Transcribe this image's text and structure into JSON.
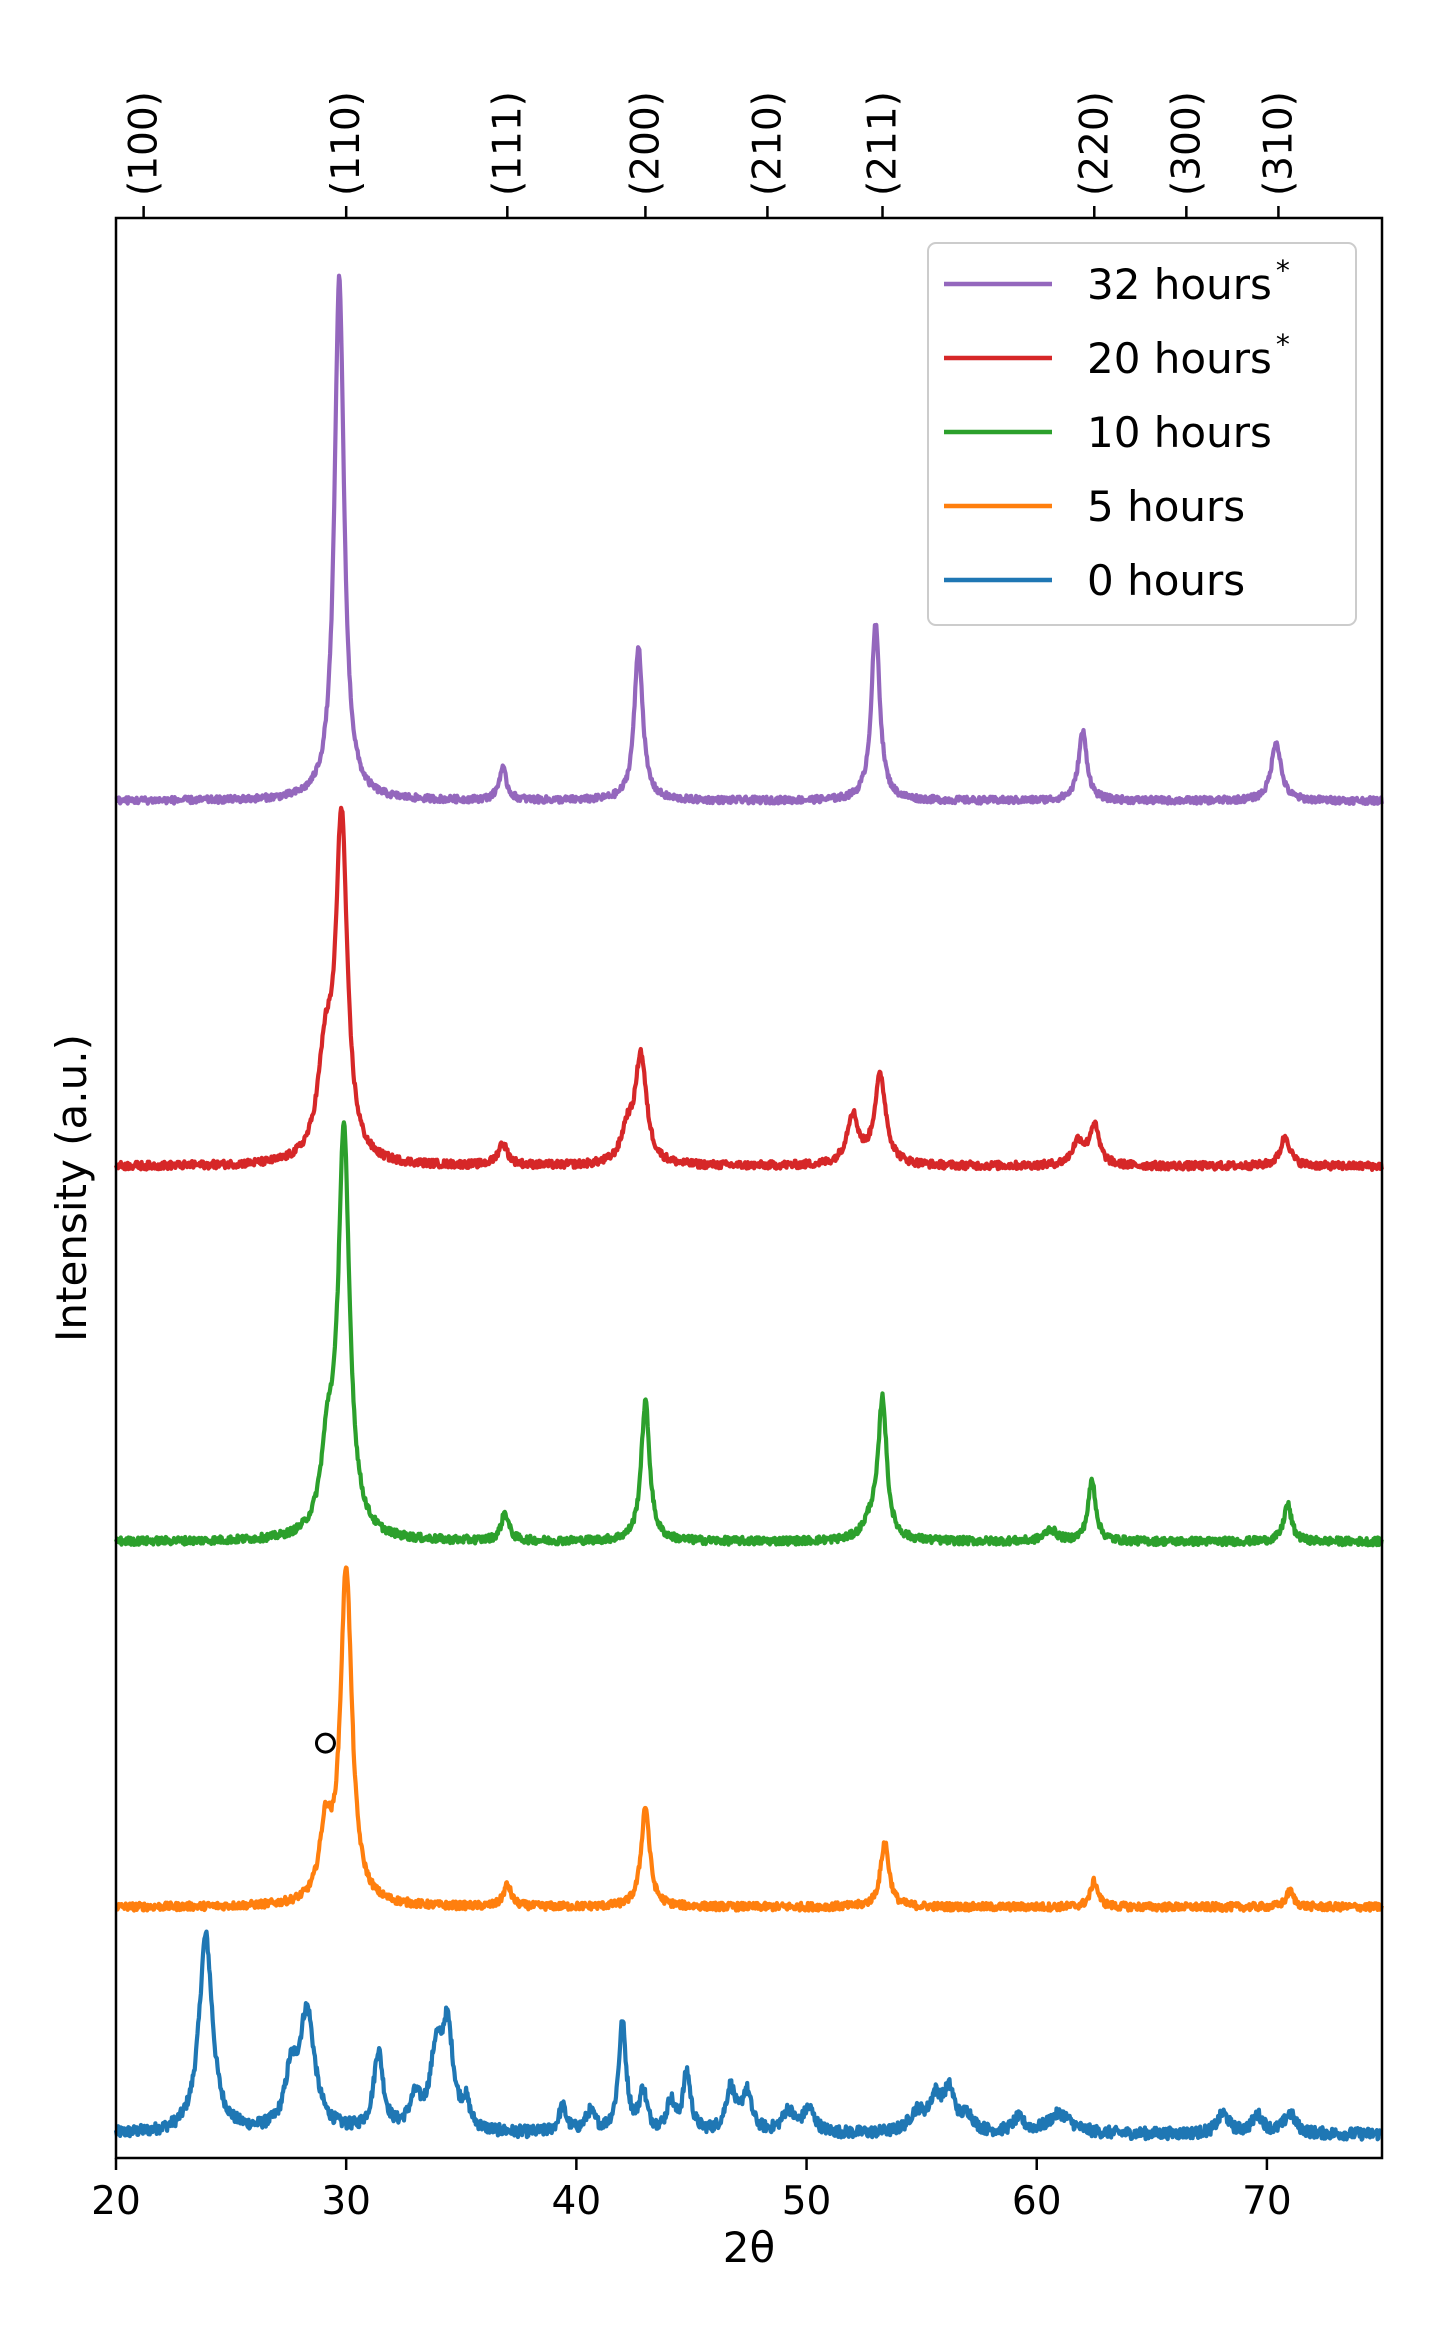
{
  "chart_data": {
    "type": "line",
    "title": "",
    "xlabel": "2θ",
    "ylabel": "Intensity (a.u.)",
    "xlim": [
      20,
      75
    ],
    "xticks": [
      20,
      30,
      40,
      50,
      60,
      70
    ],
    "y_tick_labels_shown": false,
    "top_axis_labels": [
      {
        "label": "(100)",
        "x": 21.2
      },
      {
        "label": "(110)",
        "x": 30.0
      },
      {
        "label": "(111)",
        "x": 37.0
      },
      {
        "label": "(200)",
        "x": 43.0
      },
      {
        "label": "(210)",
        "x": 48.3
      },
      {
        "label": "(211)",
        "x": 53.3
      },
      {
        "label": "(220)",
        "x": 62.5
      },
      {
        "label": "(300)",
        "x": 66.5
      },
      {
        "label": "(310)",
        "x": 70.5
      }
    ],
    "annotations": [
      {
        "text": "o",
        "x": 29.1,
        "series": "5 hours"
      }
    ],
    "legend_position": "top-right",
    "series": [
      {
        "name": "0 hours",
        "superscript": "",
        "color": "#1f77b4",
        "baseline": 0.0,
        "noise": 0.6,
        "peaks": [
          {
            "x": 23.9,
            "height": 10.0,
            "width": 0.35
          },
          {
            "x": 28.3,
            "height": 6.0,
            "width": 0.4
          },
          {
            "x": 27.6,
            "height": 2.5,
            "width": 0.3
          },
          {
            "x": 31.4,
            "height": 4.0,
            "width": 0.25
          },
          {
            "x": 33.0,
            "height": 1.5,
            "width": 0.3
          },
          {
            "x": 33.9,
            "height": 3.5,
            "width": 0.3
          },
          {
            "x": 34.4,
            "height": 5.0,
            "width": 0.3
          },
          {
            "x": 35.2,
            "height": 1.2,
            "width": 0.2
          },
          {
            "x": 39.4,
            "height": 1.3,
            "width": 0.2
          },
          {
            "x": 40.6,
            "height": 1.0,
            "width": 0.25
          },
          {
            "x": 42.0,
            "height": 5.5,
            "width": 0.2
          },
          {
            "x": 42.9,
            "height": 2.0,
            "width": 0.2
          },
          {
            "x": 44.1,
            "height": 1.5,
            "width": 0.2
          },
          {
            "x": 44.8,
            "height": 3.0,
            "width": 0.2
          },
          {
            "x": 46.7,
            "height": 2.2,
            "width": 0.25
          },
          {
            "x": 47.4,
            "height": 2.0,
            "width": 0.25
          },
          {
            "x": 49.2,
            "height": 1.1,
            "width": 0.3
          },
          {
            "x": 50.1,
            "height": 1.2,
            "width": 0.3
          },
          {
            "x": 54.8,
            "height": 1.0,
            "width": 0.4
          },
          {
            "x": 55.6,
            "height": 1.6,
            "width": 0.3
          },
          {
            "x": 56.2,
            "height": 2.0,
            "width": 0.3
          },
          {
            "x": 57.0,
            "height": 0.8,
            "width": 0.3
          },
          {
            "x": 59.2,
            "height": 0.7,
            "width": 0.3
          },
          {
            "x": 61.0,
            "height": 1.0,
            "width": 0.6
          },
          {
            "x": 68.1,
            "height": 1.0,
            "width": 0.3
          },
          {
            "x": 69.6,
            "height": 0.9,
            "width": 0.3
          },
          {
            "x": 71.0,
            "height": 1.0,
            "width": 0.3
          }
        ]
      },
      {
        "name": "5 hours",
        "superscript": "",
        "color": "#ff7f0e",
        "baseline": 11.5,
        "noise": 0.4,
        "peaks": [
          {
            "x": 30.0,
            "height": 17.0,
            "width": 0.3
          },
          {
            "x": 29.1,
            "height": 3.5,
            "width": 0.3
          },
          {
            "x": 37.0,
            "height": 1.1,
            "width": 0.2
          },
          {
            "x": 43.0,
            "height": 5.1,
            "width": 0.22
          },
          {
            "x": 53.4,
            "height": 3.3,
            "width": 0.22
          },
          {
            "x": 62.5,
            "height": 1.3,
            "width": 0.2
          },
          {
            "x": 71.0,
            "height": 0.8,
            "width": 0.2
          }
        ]
      },
      {
        "name": "10 hours",
        "superscript": "",
        "color": "#2ca02c",
        "baseline": 30.0,
        "noise": 0.4,
        "peaks": [
          {
            "x": 29.9,
            "height": 20.3,
            "width": 0.3
          },
          {
            "x": 29.2,
            "height": 4.0,
            "width": 0.35
          },
          {
            "x": 36.9,
            "height": 1.4,
            "width": 0.2
          },
          {
            "x": 43.0,
            "height": 7.1,
            "width": 0.22
          },
          {
            "x": 53.3,
            "height": 7.0,
            "width": 0.22
          },
          {
            "x": 52.8,
            "height": 0.9,
            "width": 0.4
          },
          {
            "x": 60.6,
            "height": 0.6,
            "width": 0.3
          },
          {
            "x": 62.4,
            "height": 3.1,
            "width": 0.2
          },
          {
            "x": 70.9,
            "height": 1.9,
            "width": 0.2
          }
        ]
      },
      {
        "name": "20 hours",
        "superscript": "*",
        "color": "#d62728",
        "baseline": 49.0,
        "noise": 0.4,
        "peaks": [
          {
            "x": 29.8,
            "height": 17.0,
            "width": 0.3
          },
          {
            "x": 29.1,
            "height": 5.0,
            "width": 0.4
          },
          {
            "x": 36.8,
            "height": 1.1,
            "width": 0.25
          },
          {
            "x": 42.8,
            "height": 5.5,
            "width": 0.3
          },
          {
            "x": 42.2,
            "height": 1.5,
            "width": 0.3
          },
          {
            "x": 52.0,
            "height": 2.5,
            "width": 0.3
          },
          {
            "x": 53.2,
            "height": 4.5,
            "width": 0.3
          },
          {
            "x": 61.8,
            "height": 1.2,
            "width": 0.3
          },
          {
            "x": 62.5,
            "height": 2.0,
            "width": 0.25
          },
          {
            "x": 70.8,
            "height": 1.5,
            "width": 0.25
          }
        ]
      },
      {
        "name": "32 hours",
        "superscript": "*",
        "color": "#9467bd",
        "baseline": 67.5,
        "noise": 0.35,
        "peaks": [
          {
            "x": 29.7,
            "height": 26.5,
            "width": 0.25
          },
          {
            "x": 36.8,
            "height": 1.6,
            "width": 0.2
          },
          {
            "x": 42.7,
            "height": 7.8,
            "width": 0.22
          },
          {
            "x": 53.0,
            "height": 8.9,
            "width": 0.22
          },
          {
            "x": 62.0,
            "height": 3.5,
            "width": 0.22
          },
          {
            "x": 70.4,
            "height": 3.0,
            "width": 0.25
          }
        ]
      }
    ]
  }
}
